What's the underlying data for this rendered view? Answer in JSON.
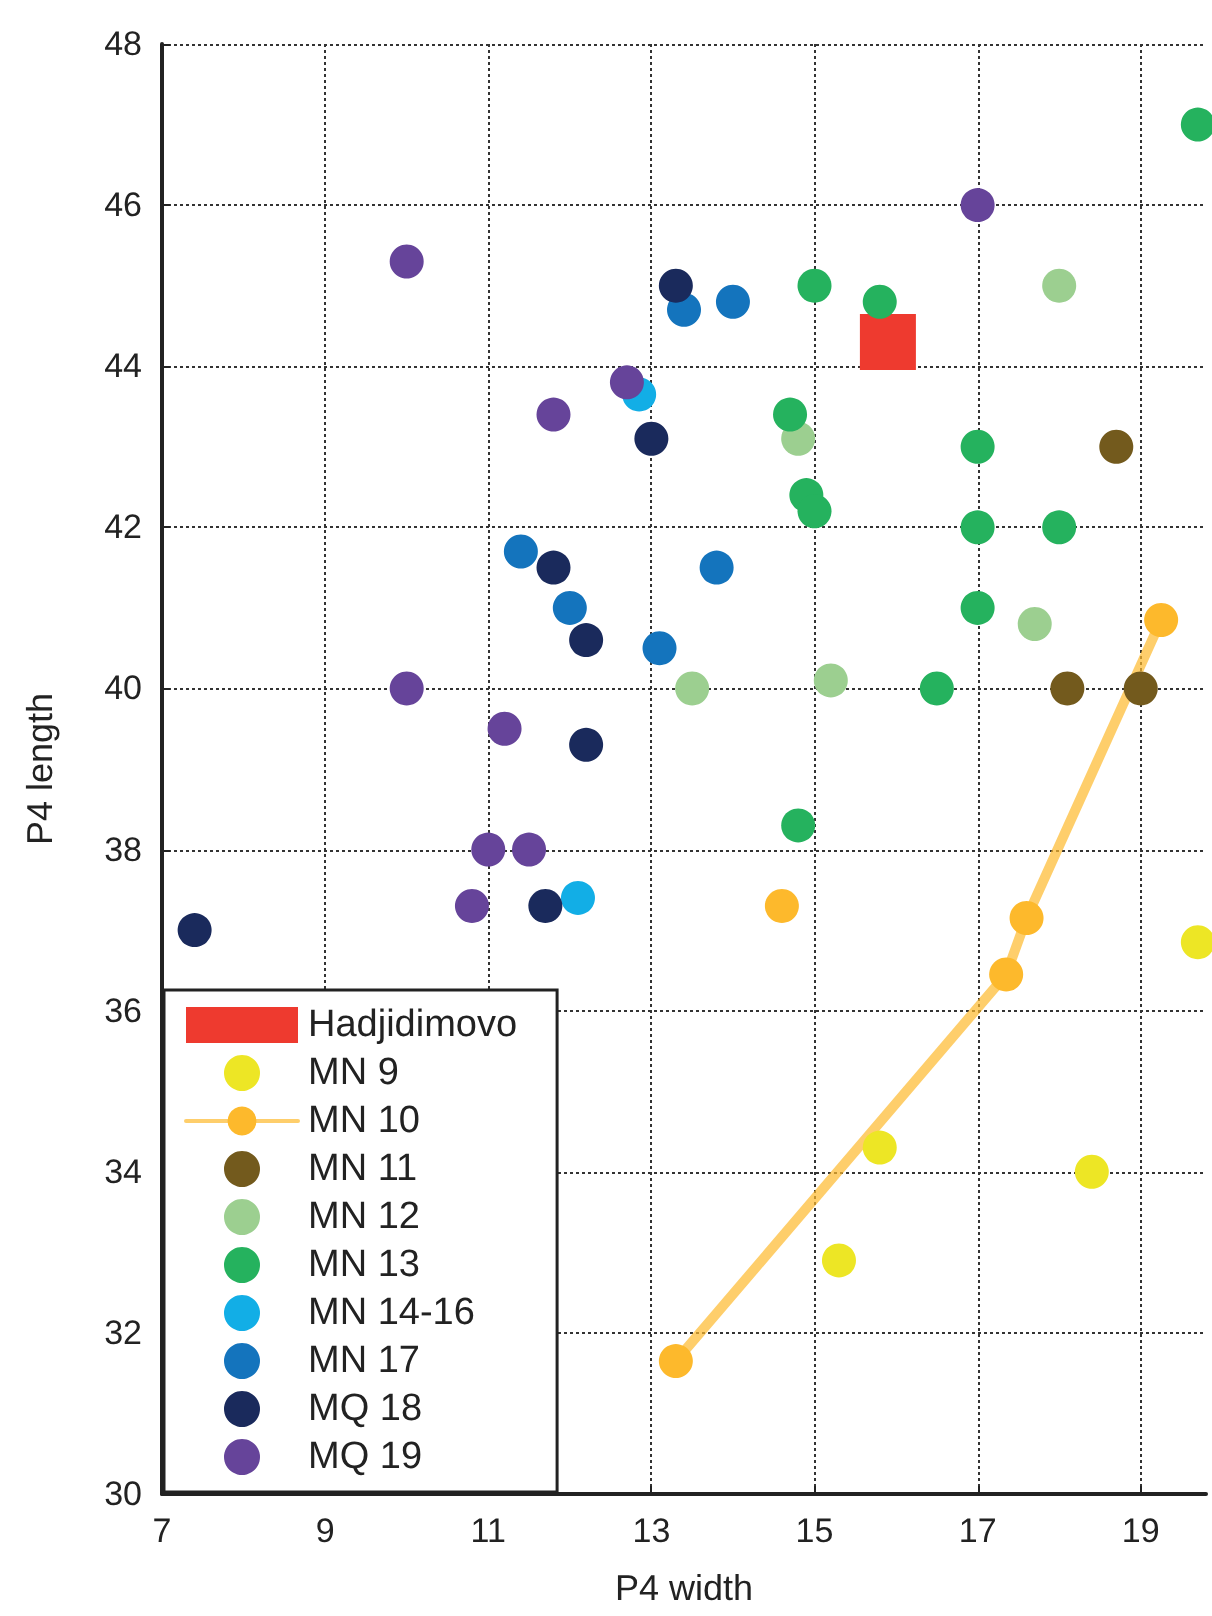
{
  "chart_data": {
    "type": "scatter",
    "xlabel": "P4 width",
    "ylabel": "P4 length",
    "xlim": [
      7,
      19.8
    ],
    "ylim": [
      30,
      48
    ],
    "xticks": [
      7,
      9,
      11,
      13,
      15,
      17,
      19
    ],
    "yticks": [
      30,
      32,
      34,
      36,
      38,
      40,
      42,
      44,
      46,
      48
    ],
    "grid": true,
    "legend": "bottom left",
    "marker": "circle",
    "series": [
      {
        "name": "Hadjidimovo",
        "color": "#ee3a2f",
        "marker": "square",
        "x": [
          15.9
        ],
        "values": [
          44.3
        ]
      },
      {
        "name": "MN 9",
        "color": "#ede625",
        "x": [
          19.7,
          15.8,
          18.4,
          15.3
        ],
        "values": [
          36.85,
          34.3,
          34.0,
          32.9
        ]
      },
      {
        "name": "MN 10",
        "type": "line",
        "color": "#fdb92c",
        "x": [
          13.3,
          17.35,
          17.6,
          19.25
        ],
        "values": [
          31.65,
          36.45,
          37.15,
          40.85
        ]
      },
      {
        "color": "#fdb92c",
        "x": [
          14.6
        ],
        "values": [
          37.3
        ]
      },
      {
        "name": "MN 11",
        "color": "#735a1d",
        "x": [
          18.7,
          18.1,
          19.0
        ],
        "values": [
          43.0,
          40.0,
          40.0
        ]
      },
      {
        "name": "MN 12",
        "color": "#9ccf90",
        "x": [
          18.0,
          14.8,
          17.7,
          13.5,
          15.2
        ],
        "values": [
          45.0,
          43.1,
          40.8,
          40.0,
          40.1
        ]
      },
      {
        "name": "MN 13",
        "color": "#25b25e",
        "x": [
          19.7,
          15.0,
          15.8,
          14.7,
          17.0,
          14.9,
          15.0,
          17.0,
          18.0,
          17.0,
          16.5,
          14.8
        ],
        "values": [
          47.0,
          45.0,
          44.8,
          43.4,
          43.0,
          42.4,
          42.2,
          42.0,
          42.0,
          41.0,
          40.0,
          38.3
        ]
      },
      {
        "name": "MN 14-16",
        "color": "#12aee6",
        "x": [
          12.85,
          12.1
        ],
        "values": [
          43.65,
          37.4
        ]
      },
      {
        "name": "MN 17",
        "color": "#1474bd",
        "x": [
          13.4,
          14.0,
          11.4,
          13.8,
          12.0,
          13.1
        ],
        "values": [
          44.7,
          44.8,
          41.7,
          41.5,
          41.0,
          40.5
        ]
      },
      {
        "name": "MQ 18",
        "color": "#1a2a5c",
        "x": [
          13.3,
          13.0,
          11.8,
          12.2,
          12.2,
          11.7,
          7.4
        ],
        "values": [
          45.0,
          43.1,
          41.5,
          40.6,
          39.3,
          37.3,
          37.0
        ]
      },
      {
        "name": "MQ 19",
        "color": "#66449a",
        "x": [
          10.0,
          17.0,
          12.7,
          11.8,
          10.0,
          11.2,
          11.0,
          11.5,
          10.8
        ],
        "values": [
          45.3,
          46.0,
          43.8,
          43.4,
          40.0,
          39.5,
          38.0,
          38.0,
          37.3
        ]
      }
    ]
  }
}
